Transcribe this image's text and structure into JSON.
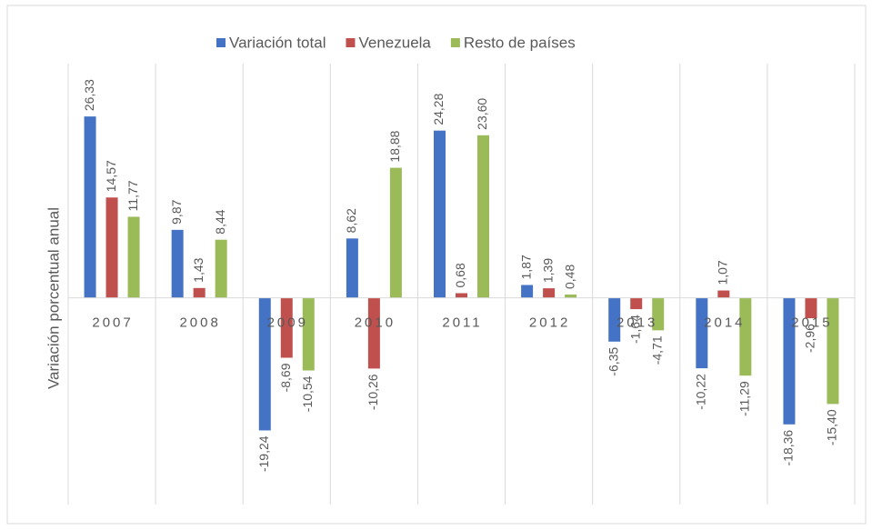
{
  "chart_data": {
    "type": "bar",
    "y_label": "Variación porcentual anual",
    "categories": [
      "2007",
      "2008",
      "2009",
      "2010",
      "2011",
      "2012",
      "2013",
      "2014",
      "2015"
    ],
    "series": [
      {
        "name": "Variación total",
        "color": "#4472c4",
        "values": [
          26.33,
          9.87,
          -19.24,
          8.62,
          24.28,
          1.87,
          -6.35,
          -10.22,
          -18.36
        ],
        "value_labels": [
          "26,33",
          "9,87",
          "-19,24",
          "8,62",
          "24,28",
          "1,87",
          "-6,35",
          "-10,22",
          "-18,36"
        ]
      },
      {
        "name": "Venezuela",
        "color": "#c0504d",
        "values": [
          14.57,
          1.43,
          -8.69,
          -10.26,
          0.68,
          1.39,
          -1.64,
          1.07,
          -2.96
        ],
        "value_labels": [
          "14,57",
          "1,43",
          "-8,69",
          "-10,26",
          "0,68",
          "1,39",
          "-1,64",
          "1,07",
          "-2,96"
        ]
      },
      {
        "name": "Resto de países",
        "color": "#9bbb59",
        "values": [
          11.77,
          8.44,
          -10.54,
          18.88,
          23.6,
          0.48,
          -4.71,
          -11.29,
          -15.4
        ],
        "value_labels": [
          "11,77",
          "8,44",
          "-10,54",
          "18,88",
          "23,60",
          "0,48",
          "-4,71",
          "-11,29",
          "-15,40"
        ]
      }
    ],
    "ylim": [
      -30,
      34
    ],
    "legend": "top"
  }
}
